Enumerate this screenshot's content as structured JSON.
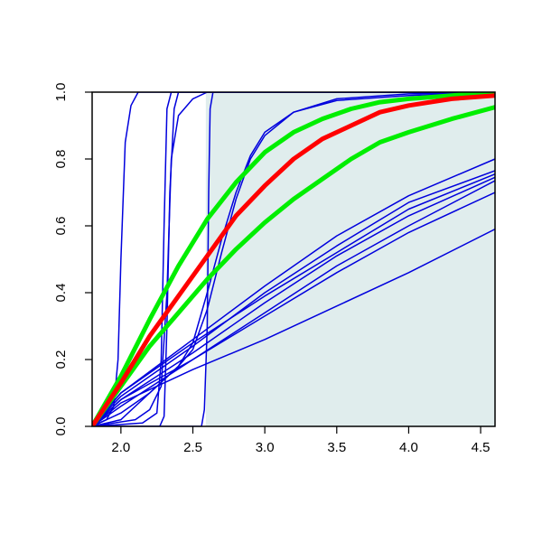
{
  "chart_data": {
    "type": "line",
    "title": "",
    "xlabel": "",
    "ylabel": "",
    "xlim": [
      1.8,
      4.6
    ],
    "ylim": [
      0.0,
      1.0
    ],
    "x_ticks": [
      2.0,
      2.5,
      3.0,
      3.5,
      4.0,
      4.5
    ],
    "x_tick_labels": [
      "2.0",
      "2.5",
      "3.0",
      "3.5",
      "4.0",
      "4.5"
    ],
    "y_ticks": [
      0.0,
      0.2,
      0.4,
      0.6,
      0.8,
      1.0
    ],
    "y_tick_labels": [
      "0.0",
      "0.2",
      "0.4",
      "0.6",
      "0.8",
      "1.0"
    ],
    "grid": false,
    "legend": "none",
    "shaded_region": {
      "x_from": 2.59,
      "x_to": 4.6,
      "color": "#e0eded"
    },
    "colors": {
      "blue": "#0000dd",
      "red": "#ff0000",
      "green": "#00ee00",
      "axis": "#000000"
    },
    "series": [
      {
        "color": "#0000dd",
        "width": 1.5,
        "points": [
          [
            1.8,
            0
          ],
          [
            1.9,
            0.02
          ],
          [
            1.95,
            0.06
          ],
          [
            1.98,
            0.2
          ],
          [
            2.0,
            0.5
          ],
          [
            2.03,
            0.85
          ],
          [
            2.07,
            0.96
          ],
          [
            2.12,
            1.0
          ],
          [
            4.6,
            1.0
          ]
        ]
      },
      {
        "color": "#0000dd",
        "width": 1.5,
        "points": [
          [
            1.8,
            0
          ],
          [
            2.15,
            0.01
          ],
          [
            2.25,
            0.04
          ],
          [
            2.28,
            0.2
          ],
          [
            2.3,
            0.6
          ],
          [
            2.32,
            0.95
          ],
          [
            2.35,
            1.0
          ],
          [
            4.6,
            1.0
          ]
        ]
      },
      {
        "color": "#0000dd",
        "width": 1.5,
        "points": [
          [
            1.8,
            0
          ],
          [
            2.27,
            0
          ],
          [
            2.3,
            0.03
          ],
          [
            2.32,
            0.3
          ],
          [
            2.34,
            0.7
          ],
          [
            2.37,
            0.95
          ],
          [
            2.4,
            1.0
          ],
          [
            4.6,
            1.0
          ]
        ]
      },
      {
        "color": "#0000dd",
        "width": 1.5,
        "points": [
          [
            1.8,
            0
          ],
          [
            2.1,
            0.02
          ],
          [
            2.2,
            0.05
          ],
          [
            2.28,
            0.12
          ],
          [
            2.32,
            0.4
          ],
          [
            2.35,
            0.8
          ],
          [
            2.4,
            0.93
          ],
          [
            2.5,
            0.98
          ],
          [
            2.6,
            1.0
          ],
          [
            4.6,
            1.0
          ]
        ]
      },
      {
        "color": "#0000dd",
        "width": 1.5,
        "points": [
          [
            1.8,
            0
          ],
          [
            2.56,
            0
          ],
          [
            2.58,
            0.05
          ],
          [
            2.6,
            0.3
          ],
          [
            2.61,
            0.7
          ],
          [
            2.62,
            0.95
          ],
          [
            2.64,
            1.0
          ],
          [
            4.6,
            1.0
          ]
        ]
      },
      {
        "color": "#0000dd",
        "width": 1.5,
        "points": [
          [
            1.8,
            0
          ],
          [
            2.0,
            0.02
          ],
          [
            2.2,
            0.1
          ],
          [
            2.4,
            0.18
          ],
          [
            2.5,
            0.23
          ],
          [
            2.6,
            0.35
          ],
          [
            2.7,
            0.52
          ],
          [
            2.8,
            0.68
          ],
          [
            2.9,
            0.8
          ],
          [
            3.0,
            0.87
          ],
          [
            3.2,
            0.94
          ],
          [
            3.5,
            0.98
          ],
          [
            4.0,
            0.995
          ],
          [
            4.6,
            1.0
          ]
        ]
      },
      {
        "color": "#0000dd",
        "width": 1.5,
        "points": [
          [
            1.8,
            0
          ],
          [
            2.0,
            0.04
          ],
          [
            2.2,
            0.1
          ],
          [
            2.4,
            0.18
          ],
          [
            2.5,
            0.25
          ],
          [
            2.6,
            0.4
          ],
          [
            2.7,
            0.56
          ],
          [
            2.8,
            0.7
          ],
          [
            2.9,
            0.81
          ],
          [
            3.0,
            0.88
          ],
          [
            3.2,
            0.94
          ],
          [
            3.5,
            0.975
          ],
          [
            4.0,
            0.99
          ],
          [
            4.6,
            1.0
          ]
        ]
      },
      {
        "color": "#0000dd",
        "width": 1.5,
        "points": [
          [
            1.8,
            0
          ],
          [
            2.0,
            0.1
          ],
          [
            2.5,
            0.26
          ],
          [
            3.0,
            0.42
          ],
          [
            3.5,
            0.57
          ],
          [
            4.0,
            0.69
          ],
          [
            4.6,
            0.8
          ]
        ]
      },
      {
        "color": "#0000dd",
        "width": 1.5,
        "points": [
          [
            1.8,
            0
          ],
          [
            2.0,
            0.09
          ],
          [
            2.5,
            0.24
          ],
          [
            3.0,
            0.4
          ],
          [
            3.5,
            0.54
          ],
          [
            4.0,
            0.67
          ],
          [
            4.6,
            0.765
          ]
        ]
      },
      {
        "color": "#0000dd",
        "width": 1.5,
        "points": [
          [
            1.8,
            0
          ],
          [
            2.0,
            0.1
          ],
          [
            2.5,
            0.25
          ],
          [
            3.0,
            0.39
          ],
          [
            3.5,
            0.52
          ],
          [
            4.0,
            0.65
          ],
          [
            4.6,
            0.755
          ]
        ]
      },
      {
        "color": "#0000dd",
        "width": 1.5,
        "points": [
          [
            1.8,
            0
          ],
          [
            2.0,
            0.08
          ],
          [
            2.5,
            0.22
          ],
          [
            3.0,
            0.37
          ],
          [
            3.5,
            0.51
          ],
          [
            4.0,
            0.63
          ],
          [
            4.6,
            0.745
          ]
        ]
      },
      {
        "color": "#0000dd",
        "width": 1.5,
        "points": [
          [
            1.8,
            0
          ],
          [
            2.0,
            0.06
          ],
          [
            2.5,
            0.2
          ],
          [
            3.0,
            0.34
          ],
          [
            3.5,
            0.48
          ],
          [
            4.0,
            0.6
          ],
          [
            4.6,
            0.735
          ]
        ]
      },
      {
        "color": "#0000dd",
        "width": 1.5,
        "points": [
          [
            1.8,
            0
          ],
          [
            2.0,
            0.08
          ],
          [
            2.5,
            0.2
          ],
          [
            3.0,
            0.33
          ],
          [
            3.5,
            0.46
          ],
          [
            4.0,
            0.58
          ],
          [
            4.6,
            0.7
          ]
        ]
      },
      {
        "color": "#0000dd",
        "width": 1.5,
        "points": [
          [
            1.8,
            0
          ],
          [
            2.0,
            0.07
          ],
          [
            2.5,
            0.17
          ],
          [
            3.0,
            0.26
          ],
          [
            3.5,
            0.36
          ],
          [
            4.0,
            0.46
          ],
          [
            4.6,
            0.59
          ]
        ]
      },
      {
        "color": "#00ee00",
        "width": 5,
        "points": [
          [
            1.8,
            0
          ],
          [
            2.0,
            0.15
          ],
          [
            2.2,
            0.32
          ],
          [
            2.4,
            0.48
          ],
          [
            2.6,
            0.62
          ],
          [
            2.8,
            0.73
          ],
          [
            3.0,
            0.82
          ],
          [
            3.2,
            0.88
          ],
          [
            3.4,
            0.92
          ],
          [
            3.6,
            0.95
          ],
          [
            3.8,
            0.97
          ],
          [
            4.0,
            0.98
          ],
          [
            4.3,
            0.99
          ],
          [
            4.6,
            1.0
          ]
        ]
      },
      {
        "color": "#00ee00",
        "width": 5,
        "points": [
          [
            1.8,
            0
          ],
          [
            2.0,
            0.12
          ],
          [
            2.2,
            0.24
          ],
          [
            2.4,
            0.34
          ],
          [
            2.6,
            0.44
          ],
          [
            2.8,
            0.53
          ],
          [
            3.0,
            0.61
          ],
          [
            3.2,
            0.68
          ],
          [
            3.4,
            0.74
          ],
          [
            3.6,
            0.8
          ],
          [
            3.8,
            0.85
          ],
          [
            4.0,
            0.88
          ],
          [
            4.3,
            0.92
          ],
          [
            4.6,
            0.955
          ]
        ]
      },
      {
        "color": "#ff0000",
        "width": 5,
        "points": [
          [
            1.8,
            0
          ],
          [
            2.0,
            0.13
          ],
          [
            2.2,
            0.27
          ],
          [
            2.4,
            0.39
          ],
          [
            2.6,
            0.51
          ],
          [
            2.8,
            0.63
          ],
          [
            3.0,
            0.72
          ],
          [
            3.2,
            0.8
          ],
          [
            3.4,
            0.86
          ],
          [
            3.6,
            0.9
          ],
          [
            3.8,
            0.94
          ],
          [
            4.0,
            0.96
          ],
          [
            4.3,
            0.98
          ],
          [
            4.6,
            0.99
          ]
        ]
      }
    ]
  }
}
